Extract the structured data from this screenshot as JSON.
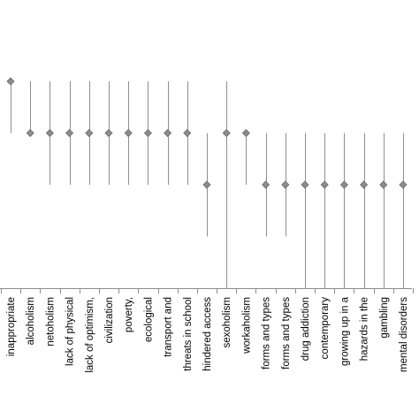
{
  "chart_data": {
    "type": "scatter",
    "categories": [
      "inappropriate",
      "alcoholism",
      "netoholism",
      "lack of physical",
      "lack of optimism,",
      "civilization",
      "poverty,",
      "ecological",
      "transport and",
      "threats in school",
      "hindered access",
      "sexoholism",
      "workaholism",
      "forms and types",
      "forms and types",
      "drug addiction",
      "contemporary",
      "growing up in a",
      "hazards in the",
      "gambling",
      "mental disorders"
    ],
    "values": [
      4,
      3,
      3,
      3,
      3,
      3,
      3,
      3,
      3,
      3,
      2,
      3,
      3,
      2,
      2,
      2,
      2,
      2,
      2,
      2,
      2
    ],
    "range_low": [
      3,
      3,
      2,
      2,
      2,
      2,
      2,
      2,
      2,
      2,
      1,
      0,
      2,
      1,
      1,
      0,
      0,
      0,
      0,
      0,
      0
    ],
    "range_high": [
      4,
      4,
      4,
      4,
      4,
      4,
      4,
      4,
      4,
      4,
      3,
      4,
      3,
      3,
      3,
      3,
      3,
      3,
      3,
      3,
      3
    ],
    "ylim": [
      0,
      4
    ],
    "grid": false,
    "legend": "none",
    "colors": {
      "marker": "#8c8c8c",
      "line": "#8f8f8f",
      "axis": "#8c8c8c"
    }
  }
}
